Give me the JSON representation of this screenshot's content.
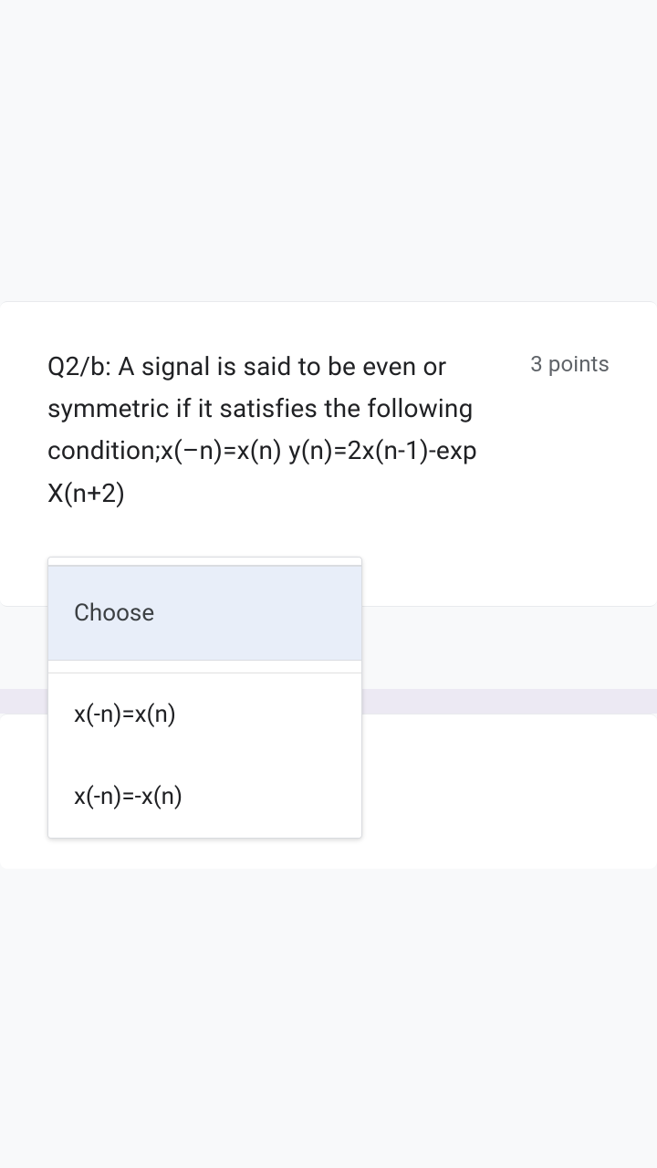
{
  "question": {
    "text": "Q2/b: A signal is said to be even or symmetric if it satisfies the following condition;x(–n)=x(n) y(n)=2x(n-1)-exp X(n+2)",
    "points": "3 points"
  },
  "dropdown": {
    "placeholder": "Choose",
    "options": [
      "x(-n)=x(n)",
      "x(-n)=-x(n)"
    ]
  },
  "colors": {
    "background": "#f8f9fa",
    "card_bg": "#ffffff",
    "text_primary": "#202124",
    "text_secondary": "#5f6368",
    "selected_bg": "#e8eef9",
    "border": "#dadce0",
    "divider": "#ece9f3"
  }
}
